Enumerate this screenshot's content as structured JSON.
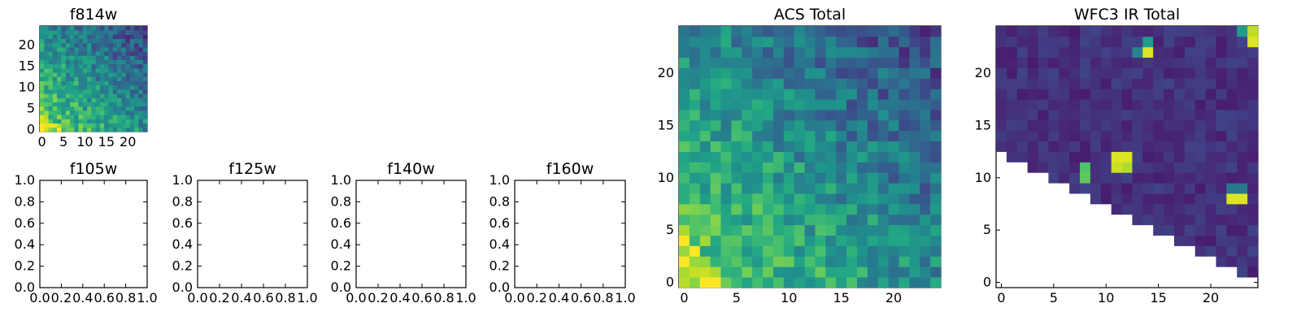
{
  "chart_data": [
    {
      "type": "heatmap",
      "title": "f814w",
      "xlabel": "",
      "ylabel": "",
      "xlim": [
        -0.5,
        24.5
      ],
      "ylim": [
        -0.5,
        24.5
      ],
      "xticks": [
        0,
        5,
        10,
        15,
        20
      ],
      "yticks": [
        0,
        5,
        10,
        15,
        20
      ],
      "colormap": "viridis",
      "grid_size": [
        25,
        25
      ],
      "intensity_description": "values in [0,1]; brightest near lower-left corner",
      "empty_region": "none"
    },
    {
      "type": "scatter",
      "title": "f105w",
      "xlabel": "",
      "ylabel": "",
      "xlim": [
        0,
        1
      ],
      "ylim": [
        0,
        1
      ],
      "xticks": [
        "0.0",
        "0.2",
        "0.4",
        "0.6",
        "0.8",
        "1.0"
      ],
      "yticks": [
        "0.0",
        "0.2",
        "0.4",
        "0.6",
        "0.8",
        "1.0"
      ],
      "series": []
    },
    {
      "type": "scatter",
      "title": "f125w",
      "xlabel": "",
      "ylabel": "",
      "xlim": [
        0,
        1
      ],
      "ylim": [
        0,
        1
      ],
      "xticks": [
        "0.0",
        "0.2",
        "0.4",
        "0.6",
        "0.8",
        "1.0"
      ],
      "yticks": [
        "0.0",
        "0.2",
        "0.4",
        "0.6",
        "0.8",
        "1.0"
      ],
      "series": []
    },
    {
      "type": "scatter",
      "title": "f140w",
      "xlabel": "",
      "ylabel": "",
      "xlim": [
        0,
        1
      ],
      "ylim": [
        0,
        1
      ],
      "xticks": [
        "0.0",
        "0.2",
        "0.4",
        "0.6",
        "0.8",
        "1.0"
      ],
      "yticks": [
        "0.0",
        "0.2",
        "0.4",
        "0.6",
        "0.8",
        "1.0"
      ],
      "series": []
    },
    {
      "type": "scatter",
      "title": "f160w",
      "xlabel": "",
      "ylabel": "",
      "xlim": [
        0,
        1
      ],
      "ylim": [
        0,
        1
      ],
      "xticks": [
        "0.0",
        "0.2",
        "0.4",
        "0.6",
        "0.8",
        "1.0"
      ],
      "yticks": [
        "0.0",
        "0.2",
        "0.4",
        "0.6",
        "0.8",
        "1.0"
      ],
      "series": []
    },
    {
      "type": "heatmap",
      "title": "ACS Total",
      "xlabel": "",
      "ylabel": "",
      "xlim": [
        -0.5,
        24.5
      ],
      "ylim": [
        -0.5,
        24.5
      ],
      "xticks": [
        0,
        5,
        10,
        15,
        20
      ],
      "yticks": [
        0,
        5,
        10,
        15,
        20
      ],
      "colormap": "viridis",
      "grid_size": [
        25,
        25
      ],
      "intensity_description": "values in [0,1]; brightest near lower-left, darker toward upper-right",
      "empty_region": "none"
    },
    {
      "type": "heatmap",
      "title": "WFC3 IR Total",
      "xlabel": "",
      "ylabel": "",
      "xlim": [
        -0.5,
        24.5
      ],
      "ylim": [
        -0.5,
        24.5
      ],
      "xticks": [
        0,
        5,
        10,
        15,
        20
      ],
      "yticks": [
        0,
        5,
        10,
        15,
        20
      ],
      "colormap": "viridis",
      "grid_size": [
        25,
        25
      ],
      "intensity_description": "mostly dark purple with a few bright pixels",
      "bright_pixels": [
        {
          "x": 24,
          "y": 23,
          "value": 0.95
        },
        {
          "x": 24,
          "y": 24,
          "value": 0.9
        },
        {
          "x": 23,
          "y": 24,
          "value": 0.55
        },
        {
          "x": 14,
          "y": 22,
          "value": 0.95
        },
        {
          "x": 14,
          "y": 23,
          "value": 0.55
        },
        {
          "x": 13,
          "y": 22,
          "value": 0.45
        },
        {
          "x": 11,
          "y": 12,
          "value": 0.95
        },
        {
          "x": 12,
          "y": 12,
          "value": 0.95
        },
        {
          "x": 11,
          "y": 11,
          "value": 0.92
        },
        {
          "x": 12,
          "y": 11,
          "value": 0.88
        },
        {
          "x": 8,
          "y": 11,
          "value": 0.72
        },
        {
          "x": 8,
          "y": 10,
          "value": 0.75
        },
        {
          "x": 23,
          "y": 8,
          "value": 0.95
        },
        {
          "x": 22,
          "y": 8,
          "value": 0.95
        },
        {
          "x": 23,
          "y": 9,
          "value": 0.4
        },
        {
          "x": 22,
          "y": 9,
          "value": 0.4
        }
      ],
      "empty_region": "lower-left triangle below the diagonal boundary is blank (no data)"
    }
  ]
}
